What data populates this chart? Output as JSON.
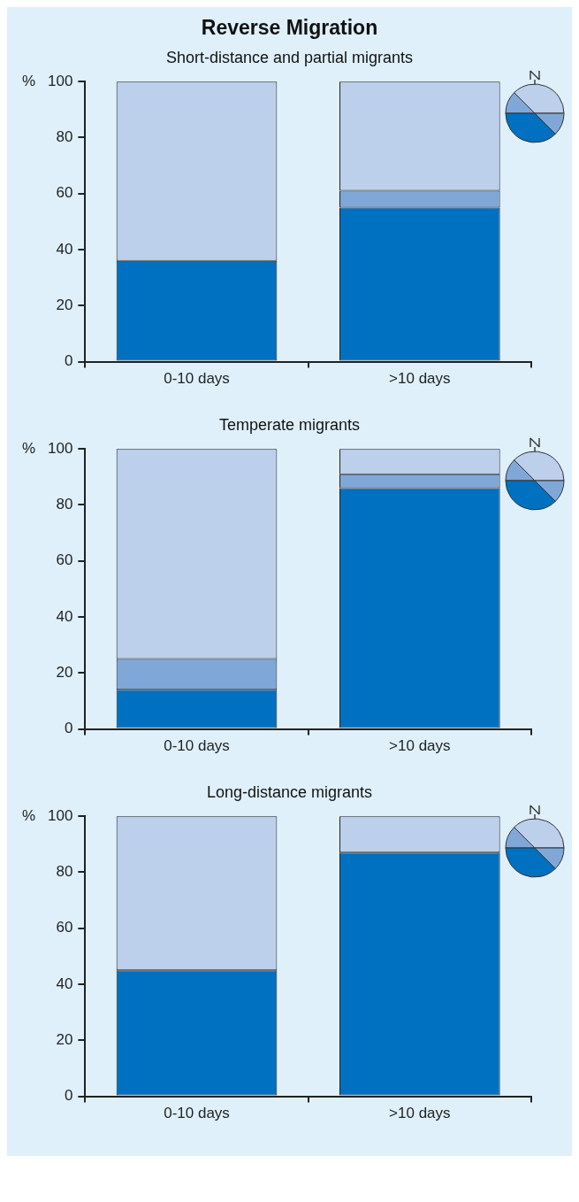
{
  "chart_data": [
    {
      "type": "bar",
      "title": "Reverse Migration",
      "subtitle": "Short-distance and partial migrants",
      "ylabel": "%",
      "categories": [
        "0-10 days",
        ">10 days"
      ],
      "stacked": true,
      "ylim": [
        0,
        100
      ],
      "yticks": [
        0,
        20,
        40,
        60,
        80,
        100
      ],
      "series": [
        {
          "color": "#0070c0",
          "values": [
            36,
            55
          ]
        },
        {
          "color": "#7fa8d8",
          "values": [
            0,
            6
          ]
        },
        {
          "color": "#bccfeb",
          "values": [
            64,
            39
          ]
        }
      ]
    },
    {
      "type": "bar",
      "subtitle": "Temperate migrants",
      "ylabel": "%",
      "categories": [
        "0-10 days",
        ">10 days"
      ],
      "stacked": true,
      "ylim": [
        0,
        100
      ],
      "yticks": [
        0,
        20,
        40,
        60,
        80,
        100
      ],
      "series": [
        {
          "color": "#0070c0",
          "values": [
            14,
            86
          ]
        },
        {
          "color": "#7fa8d8",
          "values": [
            11,
            5
          ]
        },
        {
          "color": "#bccfeb",
          "values": [
            75,
            9
          ]
        }
      ]
    },
    {
      "type": "bar",
      "subtitle": "Long-distance migrants",
      "ylabel": "%",
      "categories": [
        "0-10 days",
        ">10 days"
      ],
      "stacked": true,
      "ylim": [
        0,
        100
      ],
      "yticks": [
        0,
        20,
        40,
        60,
        80,
        100
      ],
      "series": [
        {
          "color": "#0070c0",
          "values": [
            45,
            87
          ]
        },
        {
          "color": "#bccfeb",
          "values": [
            55,
            13
          ]
        }
      ]
    }
  ]
}
